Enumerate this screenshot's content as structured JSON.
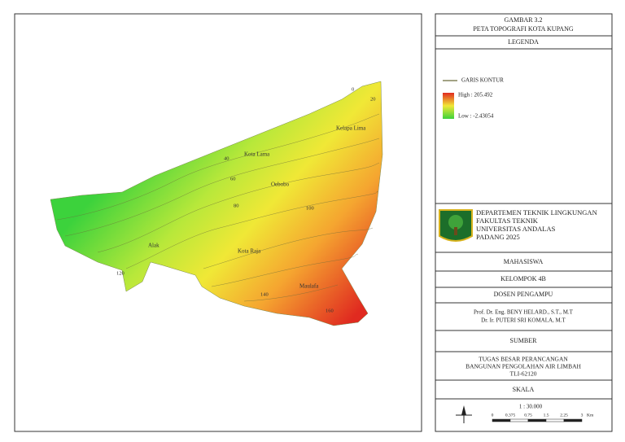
{
  "title": {
    "figure": "GAMBAR 3.2",
    "name": "PETA TOPOGRAFI KOTA KUPANG"
  },
  "legend": {
    "heading": "LEGENDA",
    "contour": "GARIS KONTUR",
    "high": "High : 205.492",
    "low": "Low : -2.43054"
  },
  "institution": [
    "DEPARTEMEN TEKNIK LINGKUNGAN",
    "FAKULTAS TEKNIK",
    "UNIVERSITAS ANDALAS",
    "PADANG 2025"
  ],
  "student": {
    "heading": "MAHASISWA",
    "group": "KELOMPOK 4B"
  },
  "lecturers": {
    "heading": "DOSEN PENGAMPU",
    "names": [
      "Prof. Dr. Eng. BENY HELARD., S.T., M.T",
      "Dr. Ir. PUTERI SRI KOMALA, M.T"
    ]
  },
  "source": {
    "heading": "SUMBER",
    "lines": [
      "TUGAS BESAR PERANCANGAN",
      "BANGUNAN PENGOLAHAN AIR LIMBAH",
      "TLI-62120"
    ]
  },
  "scale": {
    "heading": "SKALA",
    "ratio": "1 : 30.000",
    "bar_labels": [
      "0",
      "0.375",
      "0.75",
      "1.5",
      "2.25",
      "3"
    ],
    "unit": "Km"
  },
  "map": {
    "places": [
      "Kelapa Lima",
      "Kota Lama",
      "Oebobo",
      "Alak",
      "Kota Raja",
      "Maulafa"
    ],
    "contour_labels": [
      "0",
      "20",
      "40",
      "60",
      "80",
      "100",
      "120",
      "140",
      "160"
    ]
  }
}
